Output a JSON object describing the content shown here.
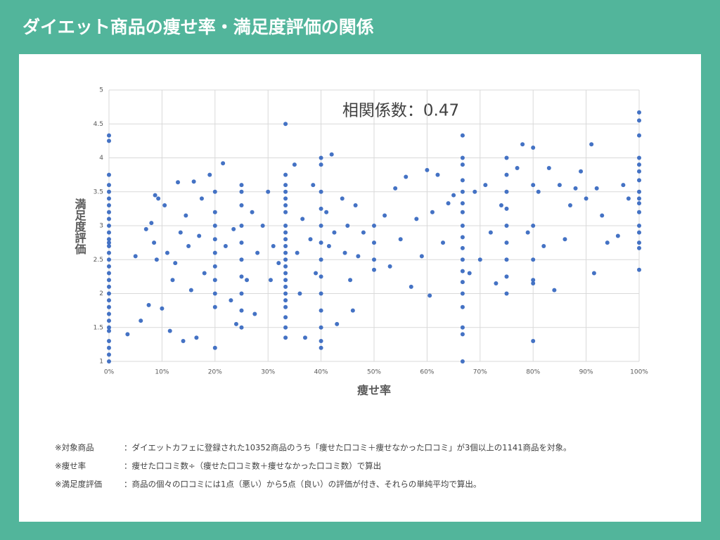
{
  "chart_data": {
    "type": "scatter",
    "title": "ダイエット商品の痩せ率・満足度評価の関係",
    "annotation": "相関係数：0.47",
    "xlabel": "痩せ率",
    "ylabel": "満足度評価",
    "color": "#4472c4",
    "grid": true,
    "xlim": [
      0,
      100
    ],
    "ylim": [
      1,
      5
    ],
    "xticks": [
      {
        "value": 0,
        "label": "0%"
      },
      {
        "value": 10,
        "label": "10%"
      },
      {
        "value": 20,
        "label": "20%"
      },
      {
        "value": 30,
        "label": "30%"
      },
      {
        "value": 40,
        "label": "40%"
      },
      {
        "value": 50,
        "label": "50%"
      },
      {
        "value": 60,
        "label": "60%"
      },
      {
        "value": 70,
        "label": "70%"
      },
      {
        "value": 80,
        "label": "80%"
      },
      {
        "value": 90,
        "label": "90%"
      },
      {
        "value": 100,
        "label": "100%"
      }
    ],
    "yticks": [
      1,
      1.5,
      2,
      2.5,
      3,
      3.5,
      4,
      4.5,
      5
    ],
    "x": [
      0,
      0,
      0,
      0,
      0,
      0,
      0,
      0,
      0,
      0,
      0,
      0,
      0,
      0,
      0,
      0,
      0,
      0,
      0,
      0,
      0,
      0,
      0,
      0,
      0,
      0,
      0,
      0,
      0,
      0,
      0,
      33.3,
      33.3,
      33.3,
      33.3,
      33.3,
      33.3,
      33.3,
      33.3,
      33.3,
      33.3,
      33.3,
      33.3,
      33.3,
      33.3,
      33.3,
      33.3,
      33.3,
      33.3,
      33.3,
      33.3,
      33.3,
      33.3,
      33.3,
      66.7,
      66.7,
      66.7,
      66.7,
      66.7,
      66.7,
      66.7,
      66.7,
      66.7,
      66.7,
      66.7,
      66.7,
      66.7,
      66.7,
      66.7,
      66.7,
      66.7,
      66.7,
      100,
      100,
      100,
      100,
      100,
      100,
      100,
      100,
      100,
      100,
      100,
      100,
      100,
      100,
      100,
      100,
      50,
      50,
      50,
      50,
      25,
      25,
      25,
      25,
      25,
      25,
      25,
      25,
      25,
      25,
      20,
      20,
      20,
      20,
      20,
      20,
      20,
      20,
      20,
      20,
      40,
      40,
      40,
      40,
      40,
      40,
      40,
      40,
      40,
      40,
      40,
      40,
      40,
      75,
      75,
      75,
      75,
      75,
      75,
      75,
      75,
      75,
      80,
      80,
      80,
      80,
      80,
      80,
      80,
      3.5,
      5,
      6,
      7,
      7.5,
      8,
      8.5,
      8.7,
      9,
      9.3,
      10,
      10.5,
      11,
      11.5,
      12,
      12.5,
      13,
      13.5,
      14,
      14.5,
      15,
      15.5,
      16,
      16.5,
      17,
      17.5,
      18,
      19,
      21.5,
      22,
      23,
      23.5,
      24,
      26,
      27,
      27.5,
      28,
      29,
      30,
      30.5,
      31,
      32,
      35,
      35.5,
      36,
      36.5,
      37,
      38,
      38.5,
      39,
      41,
      41.5,
      42,
      42.5,
      43,
      44,
      44.5,
      45,
      45.5,
      46,
      46.5,
      47,
      48,
      52,
      53,
      54,
      55,
      56,
      57,
      58,
      59,
      60,
      60.5,
      61,
      62,
      63,
      64,
      65,
      68,
      69,
      70,
      71,
      72,
      73,
      74,
      77,
      78,
      79,
      81,
      82,
      83,
      84,
      85,
      86,
      87,
      88,
      89,
      90,
      91,
      91.5,
      92,
      93,
      94,
      96,
      97,
      98
    ],
    "values": [
      4.33,
      4.25,
      3.75,
      3.6,
      3.5,
      3.4,
      3.3,
      3.2,
      3.1,
      3.0,
      2.9,
      2.8,
      2.75,
      2.7,
      2.6,
      2.5,
      2.4,
      2.3,
      2.2,
      2.1,
      2.0,
      1.9,
      1.8,
      1.7,
      1.6,
      1.5,
      1.45,
      1.3,
      1.2,
      1.1,
      1.0,
      4.5,
      3.75,
      3.6,
      3.5,
      3.4,
      3.3,
      3.2,
      3.0,
      2.9,
      2.8,
      2.7,
      2.6,
      2.5,
      2.4,
      2.3,
      2.2,
      2.1,
      2.0,
      1.9,
      1.8,
      1.65,
      1.5,
      1.35,
      4.33,
      4.0,
      3.9,
      3.67,
      3.5,
      3.33,
      3.2,
      3.0,
      2.83,
      2.67,
      2.5,
      2.33,
      2.17,
      2.0,
      1.8,
      1.5,
      1.4,
      1.0,
      4.67,
      4.55,
      4.33,
      4.0,
      3.9,
      3.8,
      3.67,
      3.5,
      3.4,
      3.33,
      3.2,
      3.0,
      2.9,
      2.75,
      2.67,
      2.35,
      3.0,
      2.75,
      2.5,
      2.35,
      3.6,
      3.5,
      3.3,
      3.0,
      2.75,
      2.5,
      2.25,
      2.0,
      1.75,
      1.5,
      3.5,
      3.2,
      3.0,
      2.8,
      2.6,
      2.4,
      2.2,
      2.0,
      1.8,
      1.2,
      4.0,
      3.9,
      3.5,
      3.25,
      3.0,
      2.75,
      2.5,
      2.25,
      2.0,
      1.75,
      1.5,
      1.3,
      1.2,
      4.0,
      3.75,
      3.5,
      3.25,
      3.0,
      2.75,
      2.5,
      2.25,
      2.0,
      4.15,
      3.6,
      3.0,
      2.5,
      2.2,
      2.15,
      1.3,
      1.4,
      2.55,
      1.6,
      2.95,
      1.83,
      3.04,
      2.75,
      3.45,
      2.5,
      3.4,
      1.78,
      3.3,
      2.6,
      1.45,
      2.2,
      2.45,
      3.64,
      2.9,
      1.3,
      3.15,
      2.7,
      2.05,
      3.65,
      1.35,
      2.85,
      3.4,
      2.3,
      3.75,
      3.92,
      2.7,
      1.9,
      2.95,
      1.55,
      2.2,
      3.2,
      1.7,
      2.6,
      3.0,
      3.5,
      2.2,
      2.7,
      2.45,
      3.9,
      2.6,
      2.0,
      3.1,
      1.35,
      2.8,
      3.6,
      2.3,
      3.2,
      2.7,
      4.05,
      2.9,
      1.55,
      3.4,
      2.6,
      3.0,
      2.2,
      1.75,
      3.3,
      2.55,
      2.9,
      3.15,
      2.4,
      3.55,
      2.8,
      3.72,
      2.1,
      3.1,
      2.55,
      3.82,
      1.97,
      3.2,
      3.75,
      2.75,
      3.33,
      3.45,
      2.3,
      3.5,
      2.5,
      3.6,
      2.9,
      2.15,
      3.3,
      3.85,
      4.2,
      2.9,
      3.5,
      2.7,
      3.85,
      2.05,
      3.6,
      2.8,
      3.3,
      3.55,
      3.8,
      3.4,
      4.2,
      2.3,
      3.55,
      3.15,
      2.75,
      2.85,
      3.6,
      3.4
    ],
    "notes": [
      [
        "※対象商品",
        "：ダイエットカフェに登録された10352商品のうち「痩せた口コミ＋痩せなかった口コミ」が3個以上の1141商品を対象。"
      ],
      [
        "※痩せ率",
        "：痩せた口コミ数÷（痩せた口コミ数＋痩せなかった口コミ数）で算出"
      ],
      [
        "※満足度評価",
        "：商品の個々の口コミには1点（悪い）から5点（良い）の評価が付き、それらの単純平均で算出。"
      ]
    ]
  }
}
